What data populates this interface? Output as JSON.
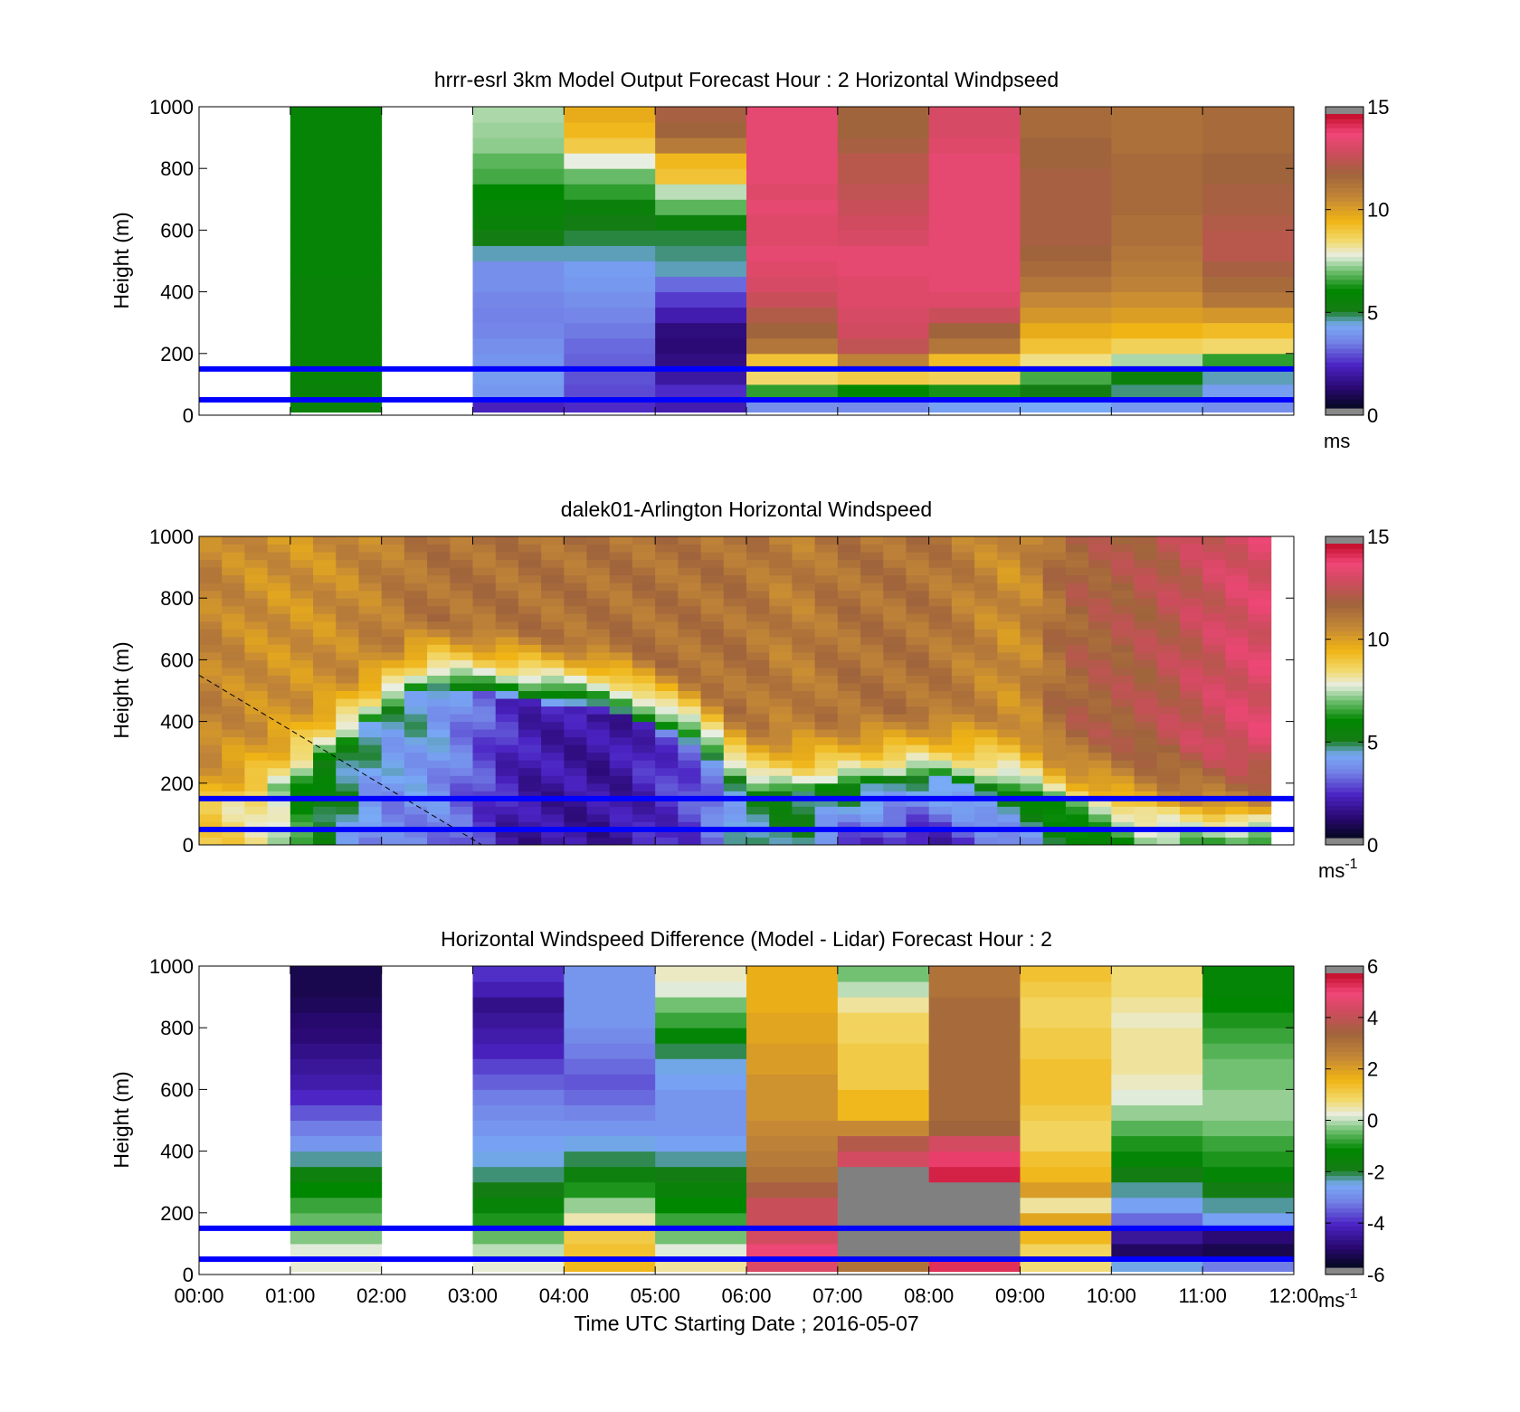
{
  "figure": {
    "xlabel": "Time UTC  Starting Date ; 2016-05-07",
    "x_tick_labels": [
      "00:00",
      "01:00",
      "02:00",
      "03:00",
      "04:00",
      "05:00",
      "06:00",
      "07:00",
      "08:00",
      "09:00",
      "10:00",
      "11:00",
      "12:00"
    ]
  },
  "chart_data": [
    {
      "type": "heatmap",
      "title": "hrrr-esrl 3km Model Output   Forecast Hour : 2 Horizontal Windpseed",
      "ylabel": "Height (m)",
      "xlim": [
        0,
        12
      ],
      "ylim": [
        0,
        1000
      ],
      "y_ticks": [
        0,
        200,
        400,
        600,
        800,
        1000
      ],
      "colorbar": {
        "min": 0,
        "max": 15,
        "ticks": [
          0,
          5,
          10,
          15
        ],
        "unit": "ms",
        "unit_sup": ""
      },
      "x_hours_edges": [
        0,
        1,
        2,
        3,
        4,
        5,
        6,
        7,
        8,
        9,
        10,
        11,
        12
      ],
      "y_levels": [
        10,
        50,
        100,
        150,
        200,
        250,
        300,
        350,
        400,
        450,
        500,
        550,
        600,
        650,
        700,
        750,
        800,
        850,
        900,
        950,
        1000
      ],
      "columns": [
        null,
        [
          5.5,
          5.5,
          5.6,
          5.6,
          5.6,
          5.6,
          5.6,
          5.6,
          5.6,
          5.7,
          5.7,
          5.7,
          5.7,
          5.7,
          5.7,
          5.7,
          5.7,
          5.7,
          5.7,
          5.7
        ],
        null,
        [
          2.0,
          3.8,
          3.9,
          3.7,
          3.6,
          3.4,
          3.3,
          3.4,
          3.6,
          3.6,
          4.4,
          5.0,
          5.5,
          5.7,
          6.0,
          6.6,
          6.8,
          7.2,
          7.3,
          7.4
        ],
        [
          2.2,
          2.6,
          2.7,
          2.9,
          3.0,
          3.2,
          3.4,
          3.6,
          3.8,
          3.9,
          4.4,
          4.8,
          5.0,
          5.4,
          6.4,
          6.9,
          7.8,
          9.0,
          9.5,
          9.8
        ],
        [
          1.8,
          2.2,
          1.6,
          1.2,
          1.0,
          1.1,
          1.8,
          2.4,
          3.0,
          4.4,
          4.6,
          4.8,
          5.4,
          6.8,
          7.5,
          9.2,
          9.5,
          11.2,
          12.0,
          12.2
        ],
        [
          3.6,
          6.4,
          8.6,
          9.2,
          11.4,
          12.0,
          12.4,
          13.0,
          13.4,
          13.6,
          13.8,
          13.6,
          13.6,
          13.8,
          13.6,
          13.8,
          13.8,
          13.8,
          13.8,
          13.8
        ],
        [
          3.5,
          6.0,
          9.0,
          11.0,
          12.8,
          13.2,
          13.4,
          13.6,
          13.6,
          13.8,
          13.8,
          13.4,
          13.2,
          13.0,
          12.8,
          12.6,
          12.6,
          12.2,
          12.0,
          12.0
        ],
        [
          4.0,
          6.2,
          8.8,
          9.4,
          11.4,
          12.0,
          13.0,
          13.6,
          13.8,
          13.8,
          13.8,
          13.8,
          13.8,
          13.8,
          13.8,
          13.8,
          13.8,
          13.6,
          13.4,
          13.4
        ],
        [
          4.2,
          5.0,
          6.6,
          8.4,
          9.2,
          9.8,
          10.4,
          10.8,
          11.4,
          11.8,
          12.0,
          12.2,
          12.2,
          12.2,
          12.2,
          12.2,
          12.0,
          12.0,
          11.8,
          11.8
        ],
        [
          3.8,
          4.6,
          5.4,
          7.4,
          8.8,
          9.6,
          10.2,
          10.6,
          11.0,
          11.2,
          11.4,
          11.6,
          11.6,
          11.8,
          11.8,
          11.8,
          11.8,
          11.6,
          11.6,
          11.6
        ],
        [
          3.6,
          3.9,
          4.4,
          6.4,
          8.6,
          9.4,
          10.4,
          11.4,
          11.8,
          12.2,
          12.6,
          12.6,
          12.4,
          12.2,
          12.2,
          12.0,
          12.0,
          11.8,
          11.8,
          11.8
        ]
      ],
      "reference_lines_m": [
        50,
        150
      ]
    },
    {
      "type": "heatmap",
      "title": "dalek01-Arlington  Horizontal Windspeed",
      "ylabel": "Height (m)",
      "xlim": [
        0,
        12
      ],
      "ylim": [
        0,
        1000
      ],
      "y_ticks": [
        0,
        200,
        400,
        600,
        800,
        1000
      ],
      "colorbar": {
        "min": 0,
        "max": 15,
        "ticks": [
          0,
          5,
          10,
          15
        ],
        "unit": "ms",
        "unit_sup": "-1"
      },
      "time_step_hours": 0.25,
      "data_end_hour": 11.75,
      "profile_keypoints": [
        {
          "t": 0.0,
          "jet_m": 120,
          "low": 9.0,
          "jet": 9.0,
          "top": 11.0
        },
        {
          "t": 0.75,
          "jet_m": 180,
          "low": 8.5,
          "jet": 8.0,
          "top": 10.5
        },
        {
          "t": 1.25,
          "jet_m": 250,
          "low": 5.5,
          "jet": 5.5,
          "top": 10.5
        },
        {
          "t": 2.0,
          "jet_m": 420,
          "low": 3.0,
          "jet": 4.5,
          "top": 11.0
        },
        {
          "t": 2.5,
          "jet_m": 520,
          "low": 3.5,
          "jet": 4.5,
          "top": 11.5
        },
        {
          "t": 3.5,
          "jet_m": 470,
          "low": 1.5,
          "jet": 2.0,
          "top": 11.5
        },
        {
          "t": 4.5,
          "jet_m": 430,
          "low": 1.5,
          "jet": 1.5,
          "top": 11.5
        },
        {
          "t": 5.5,
          "jet_m": 320,
          "low": 2.5,
          "jet": 3.0,
          "top": 11.5
        },
        {
          "t": 6.0,
          "jet_m": 180,
          "low": 4.5,
          "jet": 5.0,
          "top": 11.5
        },
        {
          "t": 6.5,
          "jet_m": 160,
          "low": 5.0,
          "jet": 5.0,
          "top": 11.0
        },
        {
          "t": 7.0,
          "jet_m": 200,
          "low": 2.5,
          "jet": 5.5,
          "top": 11.5
        },
        {
          "t": 8.0,
          "jet_m": 220,
          "low": 1.5,
          "jet": 4.5,
          "top": 11.5
        },
        {
          "t": 9.0,
          "jet_m": 180,
          "low": 3.5,
          "jet": 5.5,
          "top": 10.5
        },
        {
          "t": 9.5,
          "jet_m": 150,
          "low": 5.0,
          "jet": 7.0,
          "top": 12.0
        },
        {
          "t": 10.5,
          "jet_m": 120,
          "low": 7.0,
          "jet": 9.0,
          "top": 12.5
        },
        {
          "t": 11.5,
          "jet_m": 100,
          "low": 6.0,
          "jet": 9.0,
          "top": 13.5
        }
      ],
      "reference_lines_m": [
        50,
        150
      ],
      "dashed_line": {
        "x": [
          0,
          3.1
        ],
        "y": [
          550,
          0
        ]
      }
    },
    {
      "type": "heatmap",
      "title": "Horizontal Windspeed Difference (Model - Lidar) Forecast Hour : 2",
      "ylabel": "Height (m)",
      "xlim": [
        0,
        12
      ],
      "ylim": [
        0,
        1000
      ],
      "y_ticks": [
        0,
        200,
        400,
        600,
        800,
        1000
      ],
      "colorbar": {
        "min": -6,
        "max": 6,
        "ticks": [
          -6,
          -4,
          -2,
          0,
          2,
          4,
          6
        ],
        "unit": "ms",
        "unit_sup": "-1"
      },
      "x_hours_edges": [
        0,
        1,
        2,
        3,
        4,
        5,
        6,
        7,
        8,
        9,
        10,
        11,
        12
      ],
      "y_levels": [
        10,
        50,
        100,
        150,
        200,
        250,
        300,
        350,
        400,
        450,
        500,
        550,
        600,
        650,
        700,
        750,
        800,
        850,
        900,
        950,
        1000
      ],
      "columns": [
        null,
        [
          0.3,
          0.2,
          -0.3,
          -0.5,
          -0.8,
          -1.2,
          -1.8,
          -2.4,
          -3.0,
          -3.4,
          -3.8,
          -4.3,
          -4.6,
          -4.8,
          -5.0,
          -5.2,
          -5.3,
          -5.5,
          -5.6,
          -5.6
        ],
        null,
        [
          0.3,
          0.0,
          -0.5,
          -1.0,
          -1.5,
          -2.0,
          -2.3,
          -2.6,
          -2.8,
          -3.0,
          -3.2,
          -3.4,
          -3.7,
          -4.0,
          -4.4,
          -4.6,
          -4.8,
          -5.0,
          -4.5,
          -4.2
        ],
        [
          1.6,
          1.4,
          1.2,
          0.5,
          -0.2,
          -1.0,
          -1.8,
          -2.2,
          -2.6,
          -3.0,
          -3.3,
          -3.6,
          -3.8,
          -3.6,
          -3.4,
          -3.2,
          -3.0,
          -3.0,
          -3.0,
          -3.0
        ],
        [
          0.6,
          0.2,
          -0.4,
          -0.8,
          -1.2,
          -1.6,
          -2.0,
          -2.4,
          -2.8,
          -3.0,
          -3.0,
          -3.0,
          -2.8,
          -2.6,
          -2.2,
          -1.4,
          -0.8,
          -0.4,
          0.2,
          0.4
        ],
        [
          4.8,
          5.2,
          4.6,
          4.4,
          4.4,
          3.8,
          3.2,
          3.0,
          2.8,
          2.6,
          2.4,
          2.4,
          2.4,
          2.2,
          2.2,
          2.0,
          2.0,
          1.8,
          1.8,
          1.8
        ],
        [
          3.2,
          null,
          null,
          null,
          null,
          null,
          null,
          4.6,
          4.0,
          2.6,
          1.6,
          1.6,
          1.2,
          1.2,
          1.2,
          1.0,
          1.0,
          0.6,
          0.0,
          -0.4
        ],
        [
          5.6,
          null,
          null,
          null,
          null,
          null,
          5.8,
          5.4,
          4.6,
          3.6,
          3.4,
          3.4,
          3.4,
          3.4,
          3.4,
          3.4,
          3.4,
          3.4,
          3.2,
          3.2
        ],
        [
          0.8,
          1.0,
          1.6,
          2.0,
          0.6,
          2.2,
          1.6,
          1.4,
          1.0,
          1.0,
          1.2,
          1.4,
          1.4,
          1.4,
          1.2,
          1.2,
          1.0,
          1.0,
          1.2,
          1.4
        ],
        [
          -2.6,
          -5.4,
          -4.8,
          -3.6,
          -2.8,
          -2.4,
          -2.0,
          -1.4,
          -1.0,
          -0.6,
          -0.2,
          0.2,
          0.4,
          0.6,
          0.6,
          0.6,
          0.4,
          0.6,
          0.8,
          0.8
        ],
        [
          -3.4,
          -5.6,
          -5.2,
          -2.8,
          -2.4,
          -2.0,
          -1.4,
          -1.0,
          -0.8,
          -0.4,
          -0.2,
          -0.2,
          -0.4,
          -0.4,
          -0.6,
          -0.8,
          -1.0,
          -1.2,
          -1.4,
          -1.4
        ]
      ],
      "reference_lines_m": [
        50,
        150
      ]
    }
  ]
}
